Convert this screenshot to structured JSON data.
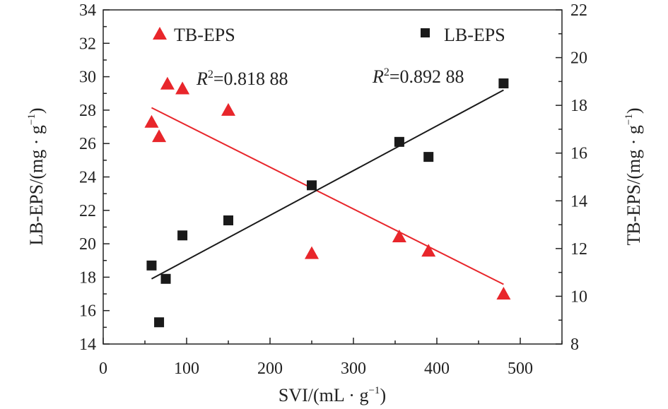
{
  "chart_data": {
    "type": "scatter",
    "xlabel": "SVI/(mL · g",
    "xlabel_sup": "−1",
    "xlabel_end": ")",
    "ylabel_left": "LB-EPS/(mg · g",
    "ylabel_left_sup": "−1",
    "ylabel_left_end": ")",
    "ylabel_right": "TB-EPS/(mg · g",
    "ylabel_right_sup": "−1",
    "ylabel_right_end": ")",
    "xlim": [
      0,
      550
    ],
    "ylim_left": [
      14,
      34
    ],
    "ylim_right": [
      8,
      22
    ],
    "x_ticks": [
      "0",
      "100",
      "200",
      "300",
      "400",
      "500"
    ],
    "y_left_ticks": [
      "14",
      "16",
      "18",
      "20",
      "22",
      "24",
      "26",
      "28",
      "30",
      "32",
      "34"
    ],
    "y_right_ticks": [
      "8",
      "10",
      "12",
      "14",
      "16",
      "18",
      "20",
      "22"
    ],
    "grid": false,
    "legend_placement": "top",
    "series": [
      {
        "name": "TB-EPS",
        "axis": "right",
        "marker": "triangle",
        "color": "#e8262b",
        "points": [
          {
            "x": 58,
            "y": 17.3
          },
          {
            "x": 67,
            "y": 16.7
          },
          {
            "x": 77,
            "y": 18.9
          },
          {
            "x": 95,
            "y": 18.7
          },
          {
            "x": 150,
            "y": 17.8
          },
          {
            "x": 250,
            "y": 11.8
          },
          {
            "x": 355,
            "y": 12.5
          },
          {
            "x": 390,
            "y": 11.9
          },
          {
            "x": 480,
            "y": 10.1
          }
        ],
        "fit": {
          "x": [
            58,
            480
          ],
          "y": [
            17.9,
            10.5
          ],
          "color": "#e8262b"
        },
        "r2_prefix": "R",
        "r2_sup": "2",
        "r2_value": "=0.818 88"
      },
      {
        "name": "LB-EPS",
        "axis": "left",
        "marker": "square",
        "color": "#1a1a1a",
        "points": [
          {
            "x": 58,
            "y": 18.7
          },
          {
            "x": 67,
            "y": 15.3
          },
          {
            "x": 75,
            "y": 17.9
          },
          {
            "x": 95,
            "y": 20.5
          },
          {
            "x": 150,
            "y": 21.4
          },
          {
            "x": 250,
            "y": 23.5
          },
          {
            "x": 355,
            "y": 26.1
          },
          {
            "x": 390,
            "y": 25.2
          },
          {
            "x": 480,
            "y": 29.6
          }
        ],
        "fit": {
          "x": [
            58,
            480
          ],
          "y": [
            17.9,
            29.2
          ],
          "color": "#1a1a1a"
        },
        "r2_prefix": "R",
        "r2_sup": "2",
        "r2_value": "=0.892 88"
      }
    ]
  }
}
